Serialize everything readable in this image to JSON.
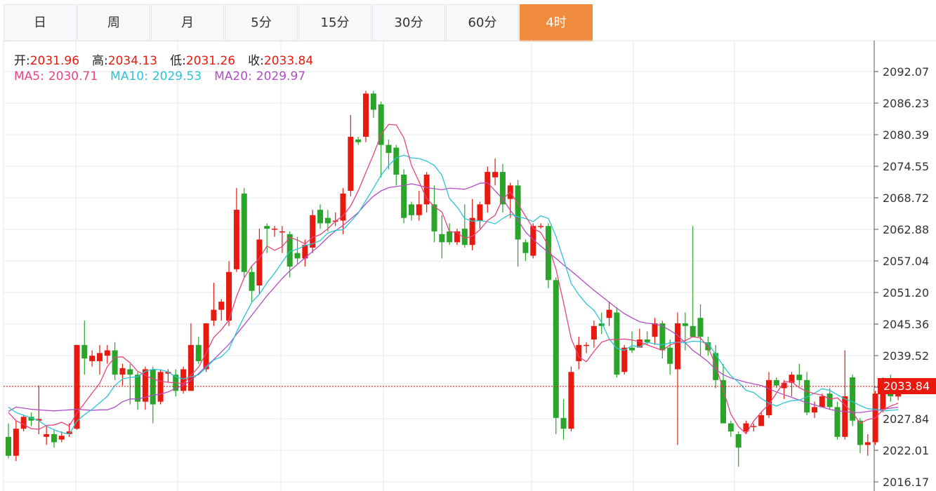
{
  "tabs": [
    {
      "label": "日",
      "active": false
    },
    {
      "label": "周",
      "active": false
    },
    {
      "label": "月",
      "active": false
    },
    {
      "label": "5分",
      "active": false
    },
    {
      "label": "15分",
      "active": false
    },
    {
      "label": "30分",
      "active": false
    },
    {
      "label": "60分",
      "active": false
    },
    {
      "label": "4时",
      "active": true
    }
  ],
  "info": {
    "open_label": "开:",
    "open": "2031.96",
    "high_label": "高:",
    "high": "2034.13",
    "low_label": "低:",
    "low": "2031.26",
    "close_label": "收:",
    "close": "2033.84",
    "ma5_label": "MA5:",
    "ma5": "2030.71",
    "ma10_label": "MA10:",
    "ma10": "2029.53",
    "ma20_label": "MA20:",
    "ma20": "2029.97"
  },
  "last_price": "2033.84",
  "colors": {
    "up": "#e8190e",
    "down": "#2aa52a",
    "ma5": "#e6457f",
    "ma10": "#2bc4d6",
    "ma20": "#b04ec4",
    "accent": "#f08a3c",
    "grid": "#e6ebf0"
  },
  "chart_data": {
    "type": "candlestick",
    "y_ticks": [
      "2092.07",
      "2086.23",
      "2080.39",
      "2074.55",
      "2068.72",
      "2062.88",
      "2057.04",
      "2051.20",
      "2045.36",
      "2039.52",
      "2033.68",
      "2027.84",
      "2022.01",
      "2016.17"
    ],
    "ylim": [
      2016.17,
      2092.07
    ],
    "current_price": 2033.84,
    "candles": [
      [
        2024.5,
        2021.0,
        2027.0,
        2020.5
      ],
      [
        2021.0,
        2026.0,
        2027.5,
        2020.0
      ],
      [
        2026.0,
        2028.2,
        2028.5,
        2025.5
      ],
      [
        2028.2,
        2027.5,
        2029.0,
        2026.5
      ],
      [
        2027.5,
        2027.8,
        2034.0,
        2025.0
      ],
      [
        2024.5,
        2025.0,
        2026.5,
        2023.0
      ],
      [
        2025.0,
        2023.5,
        2025.8,
        2022.5
      ],
      [
        2024.0,
        2024.7,
        2025.5,
        2023.5
      ],
      [
        2025.0,
        2025.5,
        2027.0,
        2024.5
      ],
      [
        2026.0,
        2041.5,
        2041.5,
        2025.8
      ],
      [
        2041.5,
        2039.0,
        2046.0,
        2036.0
      ],
      [
        2038.5,
        2039.5,
        2040.5,
        2037.5
      ],
      [
        2038.5,
        2040.0,
        2041.5,
        2036.0
      ],
      [
        2039.5,
        2040.5,
        2041.5,
        2038.0
      ],
      [
        2040.5,
        2036.0,
        2042.0,
        2035.0
      ],
      [
        2036.0,
        2037.2,
        2038.0,
        2034.0
      ],
      [
        2037.0,
        2036.0,
        2038.0,
        2030.5
      ],
      [
        2036.0,
        2031.0,
        2036.5,
        2029.5
      ],
      [
        2031.0,
        2037.0,
        2037.5,
        2029.5
      ],
      [
        2037.0,
        2030.5,
        2037.5,
        2027.0
      ],
      [
        2031.0,
        2036.5,
        2037.0,
        2030.5
      ],
      [
        2036.2,
        2036.5,
        2037.0,
        2034.5
      ],
      [
        2036.0,
        2033.0,
        2037.0,
        2032.0
      ],
      [
        2033.0,
        2037.0,
        2037.5,
        2032.5
      ],
      [
        2033.0,
        2041.5,
        2045.5,
        2033.0
      ],
      [
        2041.5,
        2038.5,
        2043.0,
        2038.0
      ],
      [
        2037.0,
        2045.5,
        2045.5,
        2036.5
      ],
      [
        2046.0,
        2048.0,
        2053.0,
        2045.0
      ],
      [
        2048.0,
        2049.5,
        2050.0,
        2046.0
      ],
      [
        2046.0,
        2055.0,
        2057.0,
        2045.0
      ],
      [
        2055.5,
        2066.5,
        2070.5,
        2055.0
      ],
      [
        2069.5,
        2055.0,
        2070.5,
        2054.0
      ],
      [
        2055.0,
        2051.5,
        2056.0,
        2049.5
      ],
      [
        2052.5,
        2061.0,
        2063.0,
        2051.0
      ],
      [
        2063.5,
        2063.0,
        2064.0,
        2058.5
      ],
      [
        2063.0,
        2063.0,
        2063.5,
        2061.5
      ],
      [
        2062.5,
        2062.5,
        2063.5,
        2058.5
      ],
      [
        2062.0,
        2056.0,
        2062.5,
        2054.0
      ],
      [
        2058.5,
        2057.5,
        2061.5,
        2056.5
      ],
      [
        2057.5,
        2060.0,
        2061.0,
        2056.0
      ],
      [
        2059.5,
        2065.5,
        2066.5,
        2058.5
      ],
      [
        2066.5,
        2064.0,
        2067.5,
        2063.0
      ],
      [
        2065.0,
        2064.0,
        2066.5,
        2062.5
      ],
      [
        2064.5,
        2064.5,
        2066.0,
        2063.5
      ],
      [
        2064.5,
        2069.5,
        2070.5,
        2062.0
      ],
      [
        2070.0,
        2080.0,
        2084.0,
        2069.0
      ],
      [
        2079.5,
        2079.0,
        2080.0,
        2078.5
      ],
      [
        2080.0,
        2088.0,
        2088.5,
        2079.0
      ],
      [
        2088.0,
        2085.0,
        2088.5,
        2083.5
      ],
      [
        2086.0,
        2078.5,
        2086.5,
        2072.5
      ],
      [
        2078.5,
        2077.0,
        2079.5,
        2074.0
      ],
      [
        2078.0,
        2073.0,
        2078.5,
        2071.0
      ],
      [
        2073.0,
        2065.0,
        2074.0,
        2064.0
      ],
      [
        2067.5,
        2065.5,
        2068.0,
        2064.5
      ],
      [
        2065.5,
        2067.5,
        2070.0,
        2064.5
      ],
      [
        2067.5,
        2073.0,
        2073.5,
        2066.0
      ],
      [
        2067.5,
        2062.5,
        2071.0,
        2060.5
      ],
      [
        2062.0,
        2060.5,
        2065.5,
        2057.5
      ],
      [
        2062.5,
        2060.5,
        2064.0,
        2060.0
      ],
      [
        2060.5,
        2062.5,
        2063.0,
        2060.0
      ],
      [
        2063.0,
        2060.0,
        2067.5,
        2059.5
      ],
      [
        2060.0,
        2065.0,
        2068.5,
        2059.0
      ],
      [
        2064.5,
        2067.5,
        2068.0,
        2063.0
      ],
      [
        2067.5,
        2073.5,
        2074.5,
        2066.0
      ],
      [
        2072.5,
        2073.5,
        2076.0,
        2071.0
      ],
      [
        2073.5,
        2067.5,
        2075.0,
        2066.0
      ],
      [
        2068.5,
        2071.0,
        2071.5,
        2065.0
      ],
      [
        2071.0,
        2061.0,
        2072.0,
        2056.0
      ],
      [
        2060.5,
        2058.5,
        2061.0,
        2057.0
      ],
      [
        2058.0,
        2063.5,
        2064.0,
        2057.5
      ],
      [
        2063.5,
        2063.5,
        2064.0,
        2063.0
      ],
      [
        2063.5,
        2053.5,
        2064.0,
        2052.0
      ],
      [
        2053.5,
        2028.0,
        2054.0,
        2025.0
      ],
      [
        2028.0,
        2026.0,
        2031.5,
        2024.0
      ],
      [
        2026.0,
        2036.5,
        2037.5,
        2025.5
      ],
      [
        2038.5,
        2041.5,
        2043.0,
        2037.0
      ],
      [
        2041.5,
        2041.5,
        2042.0,
        2040.0
      ],
      [
        2042.5,
        2045.0,
        2046.0,
        2041.0
      ],
      [
        2045.5,
        2045.0,
        2047.5,
        2043.5
      ],
      [
        2046.5,
        2048.0,
        2049.5,
        2045.0
      ],
      [
        2047.5,
        2036.0,
        2048.5,
        2035.5
      ],
      [
        2036.5,
        2041.0,
        2041.5,
        2036.0
      ],
      [
        2041.0,
        2040.5,
        2044.0,
        2040.0
      ],
      [
        2041.0,
        2042.5,
        2044.5,
        2041.0
      ],
      [
        2042.5,
        2042.0,
        2044.0,
        2041.5
      ],
      [
        2043.0,
        2045.5,
        2046.5,
        2041.5
      ],
      [
        2045.5,
        2040.5,
        2046.0,
        2039.0
      ],
      [
        2041.0,
        2038.0,
        2042.5,
        2036.0
      ],
      [
        2037.0,
        2045.5,
        2047.5,
        2023.0
      ],
      [
        2045.5,
        2045.0,
        2047.5,
        2040.5
      ],
      [
        2045.0,
        2043.0,
        2063.5,
        2043.0
      ],
      [
        2046.5,
        2043.0,
        2049.0,
        2039.5
      ],
      [
        2042.0,
        2040.5,
        2043.0,
        2039.5
      ],
      [
        2040.0,
        2035.0,
        2041.5,
        2033.5
      ],
      [
        2035.0,
        2027.0,
        2038.0,
        2027.0
      ],
      [
        2027.0,
        2025.5,
        2027.5,
        2024.5
      ],
      [
        2025.0,
        2022.5,
        2025.5,
        2019.0
      ],
      [
        2025.5,
        2027.0,
        2027.5,
        2025.0
      ],
      [
        2026.5,
        2026.5,
        2027.0,
        2025.5
      ],
      [
        2026.5,
        2028.5,
        2029.0,
        2026.5
      ],
      [
        2028.5,
        2035.0,
        2036.5,
        2028.0
      ],
      [
        2035.0,
        2034.0,
        2035.5,
        2033.5
      ],
      [
        2033.5,
        2034.5,
        2035.0,
        2031.5
      ],
      [
        2034.5,
        2036.0,
        2036.5,
        2032.0
      ],
      [
        2036.0,
        2035.0,
        2038.0,
        2034.0
      ],
      [
        2035.0,
        2029.0,
        2036.5,
        2028.5
      ],
      [
        2029.0,
        2030.0,
        2031.0,
        2028.0
      ],
      [
        2030.0,
        2032.0,
        2032.5,
        2030.0
      ],
      [
        2032.5,
        2030.0,
        2033.5,
        2029.5
      ],
      [
        2030.0,
        2024.5,
        2031.0,
        2024.0
      ],
      [
        2024.5,
        2032.0,
        2040.5,
        2024.0
      ],
      [
        2035.5,
        2027.5,
        2036.0,
        2026.5
      ],
      [
        2027.5,
        2023.0,
        2028.0,
        2021.5
      ],
      [
        2023.0,
        2023.5,
        2025.0,
        2021.0
      ],
      [
        2023.5,
        2032.5,
        2033.0,
        2023.0
      ],
      [
        2029.5,
        2035.0,
        2035.5,
        2029.0
      ],
      [
        2035.0,
        2032.0,
        2036.0,
        2031.0
      ],
      [
        2031.96,
        2033.84,
        2034.13,
        2031.26
      ]
    ],
    "ma5": [
      2029.0,
      2027.5,
      2026.8,
      2026.0,
      2025.9,
      2026.6,
      2026.7,
      2027.2,
      2026.5,
      2028.9,
      2030.7,
      2032.6,
      2034.4,
      2037.5,
      2039.2,
      2039.3,
      2038.2,
      2036.6,
      2035.9,
      2035.2,
      2034.8,
      2034.6,
      2034.5,
      2034.3,
      2035.9,
      2037.4,
      2040.0,
      2042.9,
      2044.3,
      2046.1,
      2050.5,
      2053.9,
      2056.1,
      2057.5,
      2059.8,
      2059.0,
      2059.7,
      2061.4,
      2060.9,
      2060.2,
      2061.4,
      2061.9,
      2063.0,
      2064.4,
      2065.4,
      2067.2,
      2070.0,
      2073.4,
      2076.7,
      2080.4,
      2082.3,
      2082.2,
      2079.8,
      2074.7,
      2071.7,
      2068.6,
      2067.1,
      2066.1,
      2062.5,
      2062.3,
      2061.2,
      2061.6,
      2062.8,
      2064.5,
      2065.5,
      2068.5,
      2069.8,
      2067.6,
      2065.3,
      2063.1,
      2062.3,
      2059.9,
      2055.5,
      2049.3,
      2042.7,
      2039.3,
      2038.4,
      2040.3,
      2042.0,
      2042.5,
      2042.5,
      2042.6,
      2042.4,
      2042.1,
      2041.5,
      2041.0,
      2040.5,
      2041.5,
      2042.0,
      2042.3,
      2043.0,
      2042.8,
      2041.1,
      2037.7,
      2033.2,
      2028.7,
      2026.4,
      2025.1,
      2027.4,
      2029.1,
      2030.5,
      2032.6,
      2034.7,
      2034.7,
      2033.6,
      2032.9,
      2032.5,
      2032.2,
      2031.5,
      2031.7,
      2030.4,
      2029.0,
      2027.0,
      2027.7,
      2028.0,
      2029.5,
      2030.2,
      2030.71
    ],
    "ma10": [
      2030.0,
      2029.0,
      2028.5,
      2028.0,
      2027.5,
      2026.5,
      2025.8,
      2025.3,
      2025.0,
      2027.4,
      2028.6,
      2029.6,
      2030.8,
      2032.0,
      2034.0,
      2035.2,
      2035.5,
      2035.6,
      2036.6,
      2037.0,
      2036.9,
      2036.5,
      2035.6,
      2035.2,
      2035.6,
      2036.0,
      2037.3,
      2038.7,
      2039.3,
      2040.7,
      2043.9,
      2046.7,
      2049.4,
      2050.9,
      2053.0,
      2054.8,
      2056.8,
      2058.8,
      2059.2,
      2059.9,
      2060.2,
      2060.8,
      2062.2,
      2062.7,
      2062.8,
      2064.3,
      2065.9,
      2068.2,
      2070.5,
      2072.9,
      2074.7,
      2076.1,
      2076.6,
      2076.1,
      2076.0,
      2075.5,
      2074.7,
      2072.9,
      2068.6,
      2067.0,
      2064.9,
      2064.4,
      2064.5,
      2064.3,
      2063.9,
      2064.9,
      2065.7,
      2065.2,
      2064.9,
      2064.3,
      2065.4,
      2064.9,
      2061.6,
      2057.3,
      2052.9,
      2050.8,
      2049.1,
      2047.9,
      2045.7,
      2042.6,
      2040.9,
      2040.5,
      2041.4,
      2041.1,
      2042.0,
      2041.7,
      2041.5,
      2041.9,
      2042.0,
      2041.9,
      2042.2,
      2042.1,
      2041.8,
      2039.8,
      2037.6,
      2035.8,
      2034.6,
      2033.1,
      2032.7,
      2031.6,
      2030.7,
      2030.2,
      2030.8,
      2031.2,
      2031.3,
      2031.9,
      2032.6,
      2033.4,
      2033.1,
      2032.3,
      2031.5,
      2031.0,
      2030.3,
      2029.7,
      2029.6,
      2029.3,
      2029.4,
      2029.53
    ],
    "ma20": [
      2029.2,
      2030.0,
      2029.8,
      2029.6,
      2029.5,
      2029.4,
      2029.3,
      2029.4,
      2029.5,
      2029.6,
      2029.5,
      2029.4,
      2029.5,
      2029.5,
      2030.0,
      2031.0,
      2031.5,
      2031.5,
      2031.8,
      2032.2,
      2032.4,
      2032.8,
      2033.5,
      2034.0,
      2035.0,
      2036.2,
      2037.6,
      2038.8,
      2040.2,
      2041.6,
      2043.5,
      2045.2,
      2047.0,
      2048.8,
      2050.6,
      2052.2,
      2053.8,
      2055.2,
      2056.4,
      2057.6,
      2058.8,
      2060.0,
      2061.4,
      2062.6,
      2063.6,
      2064.8,
      2066.0,
      2067.6,
      2069.0,
      2070.0,
      2070.6,
      2070.8,
      2071.0,
      2071.3,
      2071.0,
      2070.6,
      2070.4,
      2070.2,
      2070.5,
      2070.4,
      2070.3,
      2070.8,
      2071.4,
      2071.5,
      2070.0,
      2068.5,
      2066.4,
      2064.6,
      2062.4,
      2061.0,
      2059.8,
      2058.6,
      2057.5,
      2056.3,
      2055.2,
      2054.0,
      2052.8,
      2051.6,
      2050.5,
      2049.4,
      2048.3,
      2047.3,
      2046.5,
      2045.8,
      2045.5,
      2045.4,
      2045.0,
      2044.2,
      2043.3,
      2041.9,
      2040.5,
      2039.5,
      2038.4,
      2037.0,
      2036.0,
      2035.4,
      2035.0,
      2034.6,
      2034.3,
      2034.0,
      2033.4,
      2032.8,
      2032.3,
      2031.8,
      2031.3,
      2030.8,
      2030.4,
      2030.0,
      2029.6,
      2029.3,
      2029.2,
      2029.0,
      2029.0,
      2029.2,
      2029.4,
      2029.6,
      2029.8,
      2029.97
    ]
  }
}
